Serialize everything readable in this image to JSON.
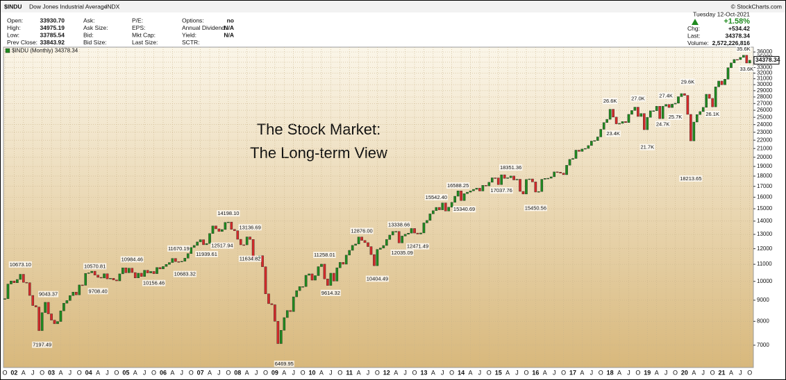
{
  "header": {
    "symbol": "$INDU",
    "name": "Dow Jones Industrial Average",
    "exchange": "INDX",
    "credit": "© StockCharts.com",
    "columns": [
      [
        {
          "label": "Open:",
          "value": "33930.70"
        },
        {
          "label": "High:",
          "value": "34975.19"
        },
        {
          "label": "Low:",
          "value": "33785.54"
        },
        {
          "label": "Prev Close:",
          "value": "33843.92"
        }
      ],
      [
        {
          "label": "Ask:"
        },
        {
          "label": "Ask Size:"
        },
        {
          "label": "Bid:"
        },
        {
          "label": "Bid Size:"
        }
      ],
      [
        {
          "label": "P/E:"
        },
        {
          "label": "EPS:"
        },
        {
          "label": "Mkt Cap:"
        },
        {
          "label": "Last Size:"
        }
      ],
      [
        {
          "label": "Options:",
          "value": "no"
        },
        {
          "label": "Annual Dividend:",
          "value": "N/A"
        },
        {
          "label": "Yield:",
          "value": "N/A"
        },
        {
          "label": "SCTR:"
        }
      ]
    ],
    "date": "Tuesday 12-Oct-2021",
    "change_pct": "+1.58%",
    "stats": [
      {
        "label": "Chg:",
        "value": "+534.42"
      },
      {
        "label": "Last:",
        "value": "34378.34"
      },
      {
        "label": "Volume:",
        "value": "2,572,226,816"
      }
    ]
  },
  "chart_data": {
    "type": "candlestick",
    "title": "The Stock Market:",
    "subtitle": "The Long-term View",
    "log_scale": true,
    "grid": true,
    "colors": {
      "up": "#1f8a1f",
      "down": "#d42a2a"
    },
    "ylim": [
      6180,
      36990
    ],
    "yticks": [
      7000,
      8000,
      9000,
      10000,
      11000,
      12000,
      13000,
      14000,
      15000,
      16000,
      17000,
      18000,
      19000,
      20000,
      21000,
      22000,
      23000,
      24000,
      25000,
      26000,
      27000,
      28000,
      29000,
      30000,
      31000,
      32000,
      33000,
      34000,
      35000,
      36000
    ],
    "price_tag": "34378.34",
    "categories": [
      "O",
      null,
      null,
      "02",
      null,
      null,
      "A",
      null,
      null,
      "J",
      null,
      null,
      "O",
      null,
      null,
      "03",
      null,
      null,
      "A",
      null,
      null,
      "J",
      null,
      null,
      "O",
      null,
      null,
      "04",
      null,
      null,
      "A",
      null,
      null,
      "J",
      null,
      null,
      "O",
      null,
      null,
      "05",
      null,
      null,
      "A",
      null,
      null,
      "J",
      null,
      null,
      "O",
      null,
      null,
      "06",
      null,
      null,
      "A",
      null,
      null,
      "J",
      null,
      null,
      "O",
      null,
      null,
      "07",
      null,
      null,
      "A",
      null,
      null,
      "J",
      null,
      null,
      "O",
      null,
      null,
      "08",
      null,
      null,
      "A",
      null,
      null,
      "J",
      null,
      null,
      "O",
      null,
      null,
      "09",
      null,
      null,
      "A",
      null,
      null,
      "J",
      null,
      null,
      "O",
      null,
      null,
      "10",
      null,
      null,
      "A",
      null,
      null,
      "J",
      null,
      null,
      "O",
      null,
      null,
      "11",
      null,
      null,
      "A",
      null,
      null,
      "J",
      null,
      null,
      "O",
      null,
      null,
      "12",
      null,
      null,
      "A",
      null,
      null,
      "J",
      null,
      null,
      "O",
      null,
      null,
      "13",
      null,
      null,
      "A",
      null,
      null,
      "J",
      null,
      null,
      "O",
      null,
      null,
      "14",
      null,
      null,
      "A",
      null,
      null,
      "J",
      null,
      null,
      "O",
      null,
      null,
      "15",
      null,
      null,
      "A",
      null,
      null,
      "J",
      null,
      null,
      "O",
      null,
      null,
      "16",
      null,
      null,
      "A",
      null,
      null,
      "J",
      null,
      null,
      "O",
      null,
      null,
      "17",
      null,
      null,
      "A",
      null,
      null,
      "J",
      null,
      null,
      "O",
      null,
      null,
      "18",
      null,
      null,
      "A",
      null,
      null,
      "J",
      null,
      null,
      "O",
      null,
      null,
      "19",
      null,
      null,
      "A",
      null,
      null,
      "J",
      null,
      null,
      "O",
      null,
      null,
      "20",
      null,
      null,
      "A",
      null,
      null,
      "J",
      null,
      null,
      "O",
      null,
      null,
      "21",
      null,
      null,
      "A",
      null,
      null,
      "J",
      null,
      null,
      "O"
    ],
    "series": [
      {
        "name": "$INDU (Monthly) 34378.34",
        "values": [
          9075,
          9852,
          10022,
          9920,
          10106,
          10404,
          9946,
          9925,
          9243,
          8737,
          8664,
          7592,
          8397,
          8896,
          8342,
          8054,
          7891,
          7992,
          8480,
          8850,
          8985,
          9234,
          9416,
          9275,
          9801,
          9782,
          10454,
          10488,
          10584,
          10358,
          10226,
          10188,
          10435,
          10140,
          10174,
          10080,
          10027,
          10428,
          10783,
          10490,
          10766,
          10504,
          10193,
          10467,
          10275,
          10641,
          10482,
          10569,
          10440,
          10806,
          10718,
          10865,
          10993,
          11109,
          11367,
          11168,
          11150,
          11186,
          11381,
          11679,
          12081,
          12222,
          12463,
          12622,
          12269,
          12354,
          13063,
          13628,
          13409,
          13212,
          13358,
          13896,
          13930,
          13372,
          13265,
          12650,
          12266,
          12263,
          12820,
          12638,
          11350,
          11378,
          11544,
          10851,
          9325,
          8829,
          8776,
          8001,
          7063,
          7609,
          8168,
          8500,
          8447,
          9172,
          9496,
          9712,
          9713,
          10345,
          10428,
          10067,
          10325,
          10857,
          11009,
          10137,
          9774,
          10466,
          10015,
          10788,
          11118,
          11006,
          11578,
          11892,
          12226,
          12320,
          12811,
          12570,
          12414,
          12143,
          11614,
          10913,
          11955,
          12046,
          12218,
          12633,
          12952,
          13212,
          13214,
          12393,
          12880,
          13009,
          13091,
          13437,
          13096,
          13026,
          13104,
          13861,
          14054,
          14579,
          14840,
          15116,
          14910,
          15500,
          14810,
          15130,
          15546,
          16086,
          16577,
          15699,
          16322,
          16458,
          16581,
          16717,
          16827,
          16563,
          17098,
          17043,
          17391,
          17828,
          17823,
          17165,
          18133,
          17776,
          17841,
          18011,
          17620,
          17690,
          16528,
          16285,
          17664,
          17720,
          17425,
          16466,
          16517,
          17685,
          17774,
          17787,
          17930,
          18432,
          18401,
          18308,
          18142,
          19124,
          19763,
          19864,
          20812,
          20663,
          20941,
          21009,
          21350,
          21891,
          21948,
          22405,
          23377,
          24272,
          24719,
          26149,
          25029,
          24103,
          24163,
          24416,
          24271,
          25415,
          25965,
          26458,
          25116,
          25538,
          23327,
          24999,
          25916,
          25929,
          26593,
          24815,
          26600,
          26864,
          26403,
          26917,
          27046,
          28051,
          28538,
          28256,
          25409,
          21917,
          24346,
          25383,
          25813,
          26428,
          28430,
          27782,
          26502,
          29639,
          30606,
          29983,
          30932,
          32982,
          33875,
          34529,
          34503,
          34935,
          35361,
          33844,
          34378
        ]
      }
    ],
    "annotations": [
      {
        "value": 10673.1,
        "label": "10673.10"
      },
      {
        "value": 9043.37,
        "label": "9043.37"
      },
      {
        "value": 7197.49,
        "label": "7197.49"
      },
      {
        "value": 10570.81,
        "label": "10570.81"
      },
      {
        "value": 10984.46,
        "label": "10984.46"
      },
      {
        "value": 9708.4,
        "label": "9708.40"
      },
      {
        "value": 10156.46,
        "label": "10156.46"
      },
      {
        "value": 10683.32,
        "label": "10683.32"
      },
      {
        "value": 11670.19,
        "label": "11670.19"
      },
      {
        "value": 14198.1,
        "label": "14198.10"
      },
      {
        "value": 12517.94,
        "label": "12517.94"
      },
      {
        "value": 11939.61,
        "label": "11939.61"
      },
      {
        "value": 13136.69,
        "label": "13136.69"
      },
      {
        "value": 11634.82,
        "label": "11634.82"
      },
      {
        "value": 6469.95,
        "label": "6469.95"
      },
      {
        "value": 11258.01,
        "label": "11258.01"
      },
      {
        "value": 9614.32,
        "label": "9614.32"
      },
      {
        "value": 12876,
        "label": "12876.00"
      },
      {
        "value": 10404.49,
        "label": "10404.49"
      },
      {
        "value": 13338.66,
        "label": "13338.66"
      },
      {
        "value": 12035.09,
        "label": "12035.09"
      },
      {
        "value": 12471.49,
        "label": "12471.49"
      },
      {
        "value": 15542.4,
        "label": "15542.40"
      },
      {
        "value": 16588.25,
        "label": "16588.25"
      },
      {
        "value": 15340.69,
        "label": "15340.69"
      },
      {
        "value": 17037.76,
        "label": "17037.76"
      },
      {
        "value": 18351.36,
        "label": "18351.36"
      },
      {
        "value": 15450.56,
        "label": "15450.56"
      },
      {
        "value": 26600,
        "label": "26.6K"
      },
      {
        "value": 23400,
        "label": "23.4K"
      },
      {
        "value": 27000,
        "label": "27.0K"
      },
      {
        "value": 21700,
        "label": "21.7K"
      },
      {
        "value": 27400,
        "label": "27.4K"
      },
      {
        "value": 25700,
        "label": "25.7K"
      },
      {
        "value": 24700,
        "label": "24.7K"
      },
      {
        "value": 29600,
        "label": "29.6K"
      },
      {
        "value": 18213.65,
        "label": "18213.65"
      },
      {
        "value": 26100,
        "label": "26.1K"
      },
      {
        "value": 35600,
        "label": "35.6K"
      },
      {
        "value": 33600,
        "label": "33.6K"
      }
    ]
  }
}
